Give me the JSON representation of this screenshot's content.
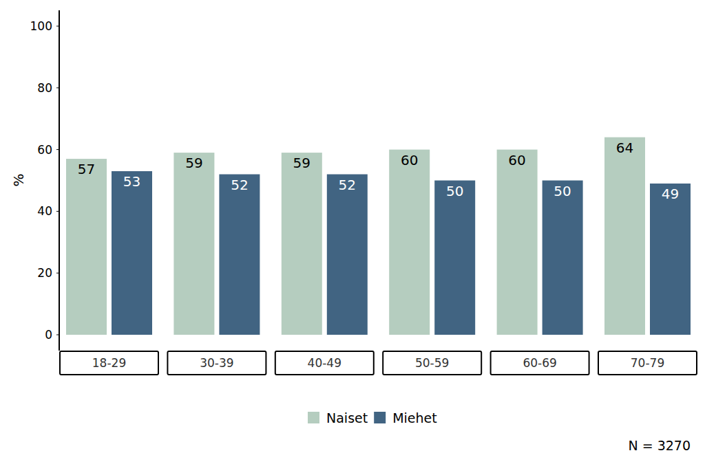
{
  "chart_data": {
    "type": "bar",
    "y_label": "%",
    "categories": [
      "18-29",
      "30-39",
      "40-49",
      "50-59",
      "60-69",
      "70-79"
    ],
    "series": [
      {
        "name": "Naiset",
        "color": "#b5cdbf",
        "values": [
          57,
          59,
          59,
          60,
          60,
          64
        ]
      },
      {
        "name": "Miehet",
        "color": "#416482",
        "values": [
          53,
          52,
          52,
          50,
          50,
          49
        ]
      }
    ],
    "ylim": [
      0,
      100
    ],
    "yticks": [
      0,
      20,
      40,
      60,
      80,
      100
    ],
    "grid": false,
    "legend": "bottom",
    "data_labels": true,
    "annotations": [
      "N = 3270"
    ]
  }
}
